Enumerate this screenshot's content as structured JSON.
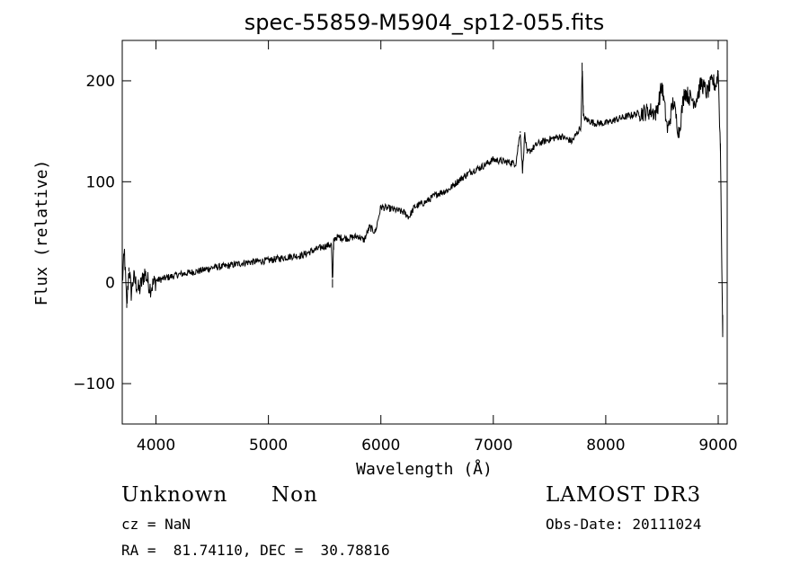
{
  "chart_data": {
    "type": "line",
    "title": "spec-55859-M5904_sp12-055.fits",
    "xlabel": "Wavelength (Å)",
    "ylabel": "Flux (relative)",
    "xlim": [
      3700,
      9080
    ],
    "ylim": [
      -140,
      240
    ],
    "x_ticks": [
      4000,
      5000,
      6000,
      7000,
      8000,
      9000
    ],
    "y_ticks": [
      -100,
      0,
      100,
      200
    ],
    "grid": false,
    "legend": "none",
    "line_color": "#000000",
    "series": [
      {
        "x": [
          3700,
          3720,
          3740,
          3760,
          3780,
          3800,
          3850,
          3900,
          3950,
          4000,
          4100,
          4200,
          4300,
          4400,
          4500,
          4600,
          4700,
          4800,
          4900,
          5000,
          5100,
          5200,
          5300,
          5400,
          5500,
          5560,
          5570,
          5580,
          5600,
          5700,
          5800,
          5850,
          5900,
          5950,
          6000,
          6100,
          6200,
          6250,
          6300,
          6400,
          6500,
          6600,
          6700,
          6800,
          6900,
          7000,
          7100,
          7200,
          7240,
          7260,
          7280,
          7300,
          7400,
          7500,
          7600,
          7700,
          7780,
          7790,
          7800,
          7820,
          7900,
          8000,
          8100,
          8200,
          8300,
          8400,
          8450,
          8500,
          8550,
          8600,
          8650,
          8700,
          8750,
          8800,
          8850,
          8900,
          8950,
          8980,
          9000,
          9020,
          9040
        ],
        "y": [
          0,
          30,
          -25,
          15,
          -10,
          5,
          -8,
          10,
          -5,
          2,
          5,
          8,
          10,
          12,
          15,
          16,
          18,
          20,
          21,
          22,
          24,
          26,
          27,
          32,
          36,
          38,
          -5,
          42,
          45,
          44,
          46,
          42,
          55,
          50,
          75,
          73,
          70,
          65,
          75,
          80,
          88,
          92,
          102,
          110,
          115,
          122,
          120,
          118,
          150,
          110,
          148,
          128,
          138,
          142,
          145,
          140,
          155,
          218,
          165,
          162,
          158,
          158,
          162,
          165,
          168,
          170,
          168,
          196,
          150,
          180,
          148,
          190,
          183,
          180,
          198,
          188,
          200,
          195,
          210,
          130,
          -50
        ]
      }
    ]
  },
  "footer": {
    "object_class": "Unknown",
    "object_subclass": "Non",
    "survey": "LAMOST DR3",
    "redshift": "cz = NaN",
    "obs_date": "Obs-Date: 20111024",
    "coords": "RA =  81.74110, DEC =  30.78816"
  }
}
